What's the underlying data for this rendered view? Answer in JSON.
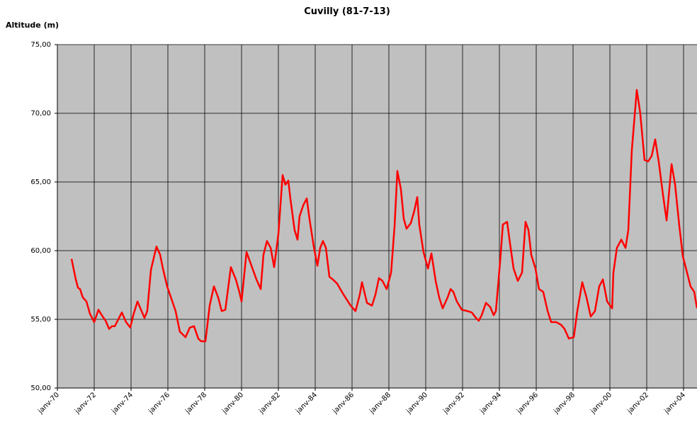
{
  "chart_data": {
    "type": "line",
    "title": "Cuvilly (81-7-13)",
    "y_label": "Altitude (m)",
    "grid": true,
    "background": "#c0c0c0",
    "xlim": [
      1970,
      2004.73
    ],
    "ylim": [
      50,
      75
    ],
    "yticks": [
      {
        "value": 50,
        "label": "50,00"
      },
      {
        "value": 55,
        "label": "55,00"
      },
      {
        "value": 60,
        "label": "60,00"
      },
      {
        "value": 65,
        "label": "65,00"
      },
      {
        "value": 70,
        "label": "70,00"
      },
      {
        "value": 75,
        "label": "75,00"
      }
    ],
    "xticks": [
      {
        "value": 1970,
        "label": "janv-70"
      },
      {
        "value": 1972,
        "label": "janv-72"
      },
      {
        "value": 1974,
        "label": "janv-74"
      },
      {
        "value": 1976,
        "label": "janv-76"
      },
      {
        "value": 1978,
        "label": "janv-78"
      },
      {
        "value": 1980,
        "label": "janv-80"
      },
      {
        "value": 1982,
        "label": "janv-82"
      },
      {
        "value": 1984,
        "label": "janv-84"
      },
      {
        "value": 1986,
        "label": "janv-86"
      },
      {
        "value": 1988,
        "label": "janv-88"
      },
      {
        "value": 1990,
        "label": "janv-90"
      },
      {
        "value": 1992,
        "label": "janv-92"
      },
      {
        "value": 1994,
        "label": "janv-94"
      },
      {
        "value": 1996,
        "label": "janv-96"
      },
      {
        "value": 1998,
        "label": "janv-98"
      },
      {
        "value": 2000,
        "label": "janv-00"
      },
      {
        "value": 2002,
        "label": "janv-02"
      },
      {
        "value": 2004,
        "label": "janv-04"
      }
    ],
    "color": "#ff0000",
    "x": [
      1970.77,
      1971.0,
      1971.12,
      1971.23,
      1971.38,
      1971.58,
      1971.77,
      1972.0,
      1972.23,
      1972.46,
      1972.62,
      1972.81,
      1972.96,
      1973.12,
      1973.27,
      1973.5,
      1973.73,
      1973.96,
      1974.12,
      1974.35,
      1974.54,
      1974.73,
      1974.88,
      1975.08,
      1975.38,
      1975.58,
      1975.73,
      1975.96,
      1976.19,
      1976.42,
      1976.65,
      1976.96,
      1977.19,
      1977.42,
      1977.65,
      1977.81,
      1978.04,
      1978.27,
      1978.5,
      1978.73,
      1978.92,
      1979.12,
      1979.42,
      1979.69,
      1979.88,
      1980.0,
      1980.27,
      1980.54,
      1980.81,
      1981.04,
      1981.19,
      1981.38,
      1981.58,
      1981.77,
      1982.0,
      1982.23,
      1982.38,
      1982.54,
      1982.65,
      1982.88,
      1983.04,
      1983.15,
      1983.35,
      1983.54,
      1983.69,
      1983.92,
      1984.12,
      1984.27,
      1984.42,
      1984.58,
      1984.77,
      1984.96,
      1985.19,
      1985.54,
      1985.92,
      1986.19,
      1986.42,
      1986.54,
      1986.81,
      1987.08,
      1987.27,
      1987.46,
      1987.65,
      1987.88,
      1988.12,
      1988.31,
      1988.46,
      1988.65,
      1988.81,
      1988.96,
      1989.19,
      1989.38,
      1989.54,
      1989.65,
      1989.88,
      1990.12,
      1990.31,
      1990.54,
      1990.73,
      1990.92,
      1991.19,
      1991.35,
      1991.5,
      1991.69,
      1991.96,
      1992.27,
      1992.5,
      1992.73,
      1992.88,
      1993.04,
      1993.27,
      1993.5,
      1993.69,
      1993.81,
      1994.04,
      1994.19,
      1994.42,
      1994.58,
      1994.77,
      1995.0,
      1995.23,
      1995.42,
      1995.58,
      1995.73,
      1995.96,
      1996.15,
      1996.38,
      1996.62,
      1996.81,
      1997.08,
      1997.35,
      1997.54,
      1997.77,
      1998.04,
      1998.23,
      1998.5,
      1998.73,
      1998.96,
      1999.19,
      1999.42,
      1999.62,
      1999.85,
      2000.12,
      2000.19,
      2000.38,
      2000.62,
      2000.85,
      2001.0,
      2001.19,
      2001.46,
      2001.65,
      2001.88,
      2002.08,
      2002.27,
      2002.46,
      2002.65,
      2002.88,
      2003.08,
      2003.19,
      2003.35,
      2003.54,
      2003.77,
      2003.96,
      2004.19,
      2004.38,
      2004.58,
      2004.73
    ],
    "values": [
      59.4,
      57.9,
      57.3,
      57.2,
      56.6,
      56.3,
      55.4,
      54.8,
      55.7,
      55.2,
      54.9,
      54.3,
      54.5,
      54.5,
      54.9,
      55.5,
      54.8,
      54.4,
      55.3,
      56.3,
      55.7,
      55.1,
      55.6,
      58.6,
      60.3,
      59.7,
      58.7,
      57.4,
      56.5,
      55.6,
      54.1,
      53.7,
      54.4,
      54.5,
      53.6,
      53.4,
      53.4,
      56.0,
      57.4,
      56.6,
      55.6,
      55.7,
      58.8,
      57.9,
      57.0,
      56.3,
      59.9,
      58.9,
      57.9,
      57.2,
      59.7,
      60.7,
      60.2,
      58.8,
      61.2,
      65.5,
      64.8,
      65.1,
      63.8,
      61.5,
      60.8,
      62.5,
      63.3,
      63.8,
      62.3,
      60.3,
      58.9,
      60.2,
      60.7,
      60.2,
      58.1,
      57.9,
      57.6,
      56.8,
      56.0,
      55.6,
      56.8,
      57.7,
      56.2,
      56.0,
      56.8,
      58.0,
      57.8,
      57.2,
      58.4,
      61.8,
      65.8,
      64.5,
      62.3,
      61.6,
      62.0,
      62.9,
      63.9,
      61.9,
      59.9,
      58.7,
      59.8,
      57.8,
      56.6,
      55.8,
      56.6,
      57.2,
      57.0,
      56.3,
      55.7,
      55.6,
      55.5,
      55.1,
      54.9,
      55.3,
      56.2,
      55.9,
      55.3,
      55.6,
      59.2,
      61.9,
      62.1,
      60.5,
      58.7,
      57.8,
      58.4,
      62.1,
      61.5,
      59.7,
      58.7,
      57.2,
      57.0,
      55.6,
      54.8,
      54.8,
      54.6,
      54.3,
      53.6,
      53.7,
      55.6,
      57.7,
      56.6,
      55.2,
      55.6,
      57.4,
      57.9,
      56.3,
      55.8,
      58.4,
      60.2,
      60.8,
      60.2,
      61.5,
      67.3,
      71.7,
      70.0,
      66.6,
      66.5,
      66.9,
      68.1,
      66.5,
      64.1,
      62.2,
      63.9,
      66.3,
      64.8,
      61.8,
      59.6,
      58.4,
      57.4,
      57.0,
      55.8
    ]
  }
}
